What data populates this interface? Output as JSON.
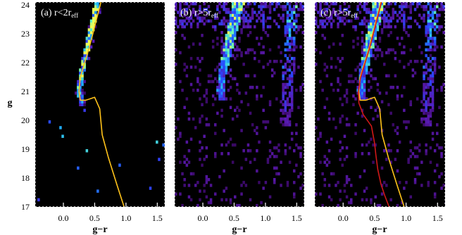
{
  "chart_data": [
    {
      "type": "heatmap",
      "panel_label": "(a) r<2r",
      "panel_label_sub": "eff",
      "xlabel": "g−r",
      "ylabel": "g",
      "xlim": [
        -0.45,
        1.62
      ],
      "ylim": [
        24.1,
        17.0
      ],
      "xticks": [
        0.0,
        0.5,
        1.0,
        1.5
      ],
      "xtick_labels": [
        "0.0",
        "0.5",
        "1.0",
        "1.5"
      ],
      "yticks": [
        17,
        18,
        19,
        20,
        21,
        22,
        23,
        24
      ],
      "ytick_labels": [
        "17",
        "18",
        "19",
        "20",
        "21",
        "22",
        "23",
        "24"
      ],
      "density": "sparse cluster sequence: turnoff near g-r=0.3, g=21; main sequence extending to g-r=0.6, g=24",
      "series": [
        {
          "name": "",
          "color": "#ffc21a",
          "x": [
            0.6,
            0.54,
            0.47,
            0.41,
            0.34,
            0.27,
            0.25,
            0.27,
            0.36,
            0.5,
            0.58,
            0.62,
            0.72,
            0.85,
            0.97
          ],
          "y": [
            24.1,
            23.6,
            23.0,
            22.5,
            22.0,
            21.5,
            21.0,
            20.7,
            20.7,
            20.8,
            20.4,
            19.5,
            18.7,
            17.8,
            17.0
          ]
        }
      ]
    },
    {
      "type": "heatmap",
      "panel_label": "(b) r>5r",
      "panel_label_sub": "eff",
      "xlabel": "g−r",
      "ylabel": "",
      "xlim": [
        -0.45,
        1.62
      ],
      "ylim": [
        24.1,
        17.0
      ],
      "xticks": [
        0.0,
        0.5,
        1.0,
        1.5
      ],
      "xtick_labels": [
        "0.0",
        "0.5",
        "1.0",
        "1.5"
      ],
      "yticks": [
        17,
        18,
        19,
        20,
        21,
        22,
        23,
        24
      ],
      "density": "field star plume near g-r=0.3-0.45 (g 21-24) and red field dwarf band near g-r=1.4",
      "series": []
    },
    {
      "type": "heatmap",
      "panel_label": "(c) r>5r",
      "panel_label_sub": "eff",
      "xlabel": "g−r",
      "ylabel": "",
      "xlim": [
        -0.45,
        1.62
      ],
      "ylim": [
        24.1,
        17.0
      ],
      "xticks": [
        0.0,
        0.5,
        1.0,
        1.5
      ],
      "xtick_labels": [
        "0.0",
        "0.5",
        "1.0",
        "1.5"
      ],
      "yticks": [
        17,
        18,
        19,
        20,
        21,
        22,
        23,
        24
      ],
      "density": "same field as (b) with isochrones overlaid",
      "series": [
        {
          "name": "",
          "color": "#ffc21a",
          "x": [
            0.6,
            0.54,
            0.47,
            0.41,
            0.34,
            0.27,
            0.25,
            0.27,
            0.36,
            0.5,
            0.58,
            0.62,
            0.72,
            0.85,
            0.97
          ],
          "y": [
            24.1,
            23.6,
            23.0,
            22.5,
            22.0,
            21.5,
            21.0,
            20.7,
            20.7,
            20.8,
            20.4,
            19.5,
            18.7,
            17.8,
            17.0
          ]
        },
        {
          "name": "",
          "color": "#d01818",
          "x": [
            0.61,
            0.55,
            0.48,
            0.42,
            0.35,
            0.28,
            0.24,
            0.25,
            0.32,
            0.45,
            0.5,
            0.52,
            0.55,
            0.6,
            0.66,
            0.73
          ],
          "y": [
            24.1,
            23.6,
            23.0,
            22.5,
            22.0,
            21.5,
            21.0,
            20.6,
            20.2,
            19.8,
            19.2,
            18.8,
            18.3,
            17.8,
            17.4,
            17.0
          ]
        }
      ]
    }
  ]
}
